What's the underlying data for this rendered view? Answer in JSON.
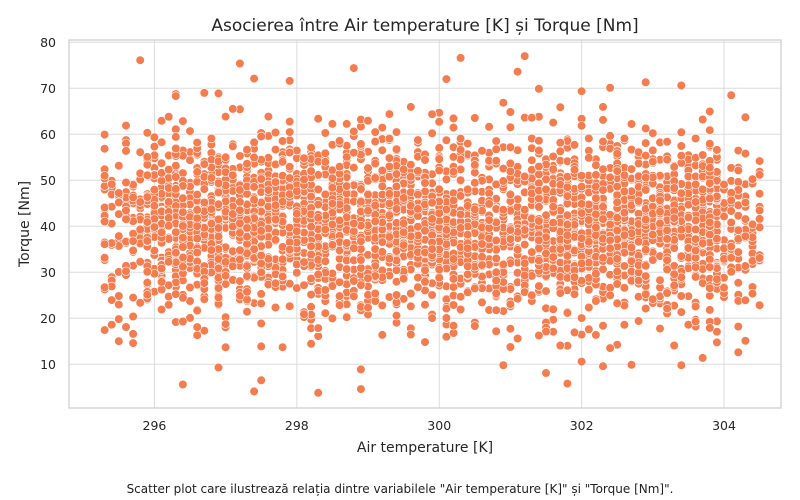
{
  "chart_data": {
    "type": "scatter",
    "title": "Asocierea între Air temperature [K] și Torque [Nm]",
    "xlabel": "Air temperature [K]",
    "ylabel": "Torque [Nm]",
    "xlim": [
      294.8,
      304.8
    ],
    "ylim": [
      0.5,
      80.5
    ],
    "xticks": [
      296,
      298,
      300,
      302,
      304
    ],
    "yticks": [
      10,
      20,
      30,
      40,
      50,
      60,
      70,
      80
    ],
    "grid": true,
    "marker_color": "#f47c4e",
    "marker_edge_color": "#ffffff",
    "points_description": "dense cloud of about 10000 observations, air temperature 295.3–304.5 K, torque mostly 15–62 Nm centered near 40 Nm",
    "x_distribution": {
      "min": 295.3,
      "max": 304.5,
      "step": 0.1
    },
    "y_distribution": {
      "mean": 40,
      "sd": 9.9
    },
    "outliers": [
      {
        "x": 295.8,
        "y": 76.1
      },
      {
        "x": 297.2,
        "y": 75.4
      },
      {
        "x": 300.3,
        "y": 76.6
      },
      {
        "x": 301.1,
        "y": 73.6
      },
      {
        "x": 298.8,
        "y": 74.4
      },
      {
        "x": 297.4,
        "y": 72.1
      },
      {
        "x": 297.9,
        "y": 71.6
      },
      {
        "x": 302.9,
        "y": 71.3
      },
      {
        "x": 300.1,
        "y": 72.0
      },
      {
        "x": 296.4,
        "y": 5.6
      },
      {
        "x": 297.4,
        "y": 4.1
      },
      {
        "x": 298.3,
        "y": 3.8
      },
      {
        "x": 298.9,
        "y": 4.6
      },
      {
        "x": 301.8,
        "y": 5.8
      },
      {
        "x": 301.5,
        "y": 8.1
      },
      {
        "x": 296.9,
        "y": 9.3
      },
      {
        "x": 303.4,
        "y": 9.8
      },
      {
        "x": 300.9,
        "y": 9.8
      },
      {
        "x": 298.9,
        "y": 8.9
      },
      {
        "x": 302.7,
        "y": 9.9
      },
      {
        "x": 303.7,
        "y": 11.4
      },
      {
        "x": 304.2,
        "y": 12.6
      },
      {
        "x": 295.6,
        "y": 61.9
      },
      {
        "x": 296.3,
        "y": 68.3
      },
      {
        "x": 296.7,
        "y": 69.0
      },
      {
        "x": 296.9,
        "y": 68.9
      },
      {
        "x": 303.4,
        "y": 70.6
      },
      {
        "x": 302.4,
        "y": 70.1
      },
      {
        "x": 304.1,
        "y": 68.5
      },
      {
        "x": 301.4,
        "y": 69.9
      },
      {
        "x": 304.5,
        "y": 33.1
      },
      {
        "x": 295.3,
        "y": 36.1
      },
      {
        "x": 295.3,
        "y": 51.0
      },
      {
        "x": 304.3,
        "y": 55.8
      },
      {
        "x": 304.3,
        "y": 15.1
      },
      {
        "x": 295.7,
        "y": 14.6
      },
      {
        "x": 295.7,
        "y": 16.6
      },
      {
        "x": 295.6,
        "y": 18.1
      },
      {
        "x": 296.3,
        "y": 19.2
      },
      {
        "x": 296.4,
        "y": 19.3
      }
    ]
  },
  "caption": "Scatter plot care ilustrează relația dintre variabilele \"Air temperature [K]\" și \"Torque [Nm]\"."
}
